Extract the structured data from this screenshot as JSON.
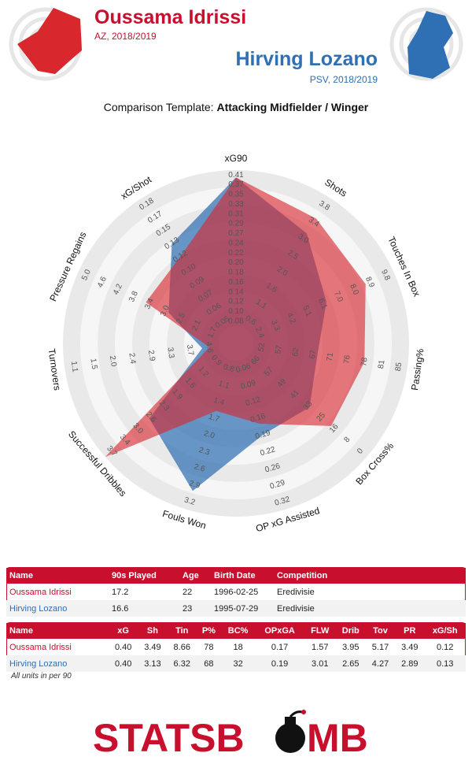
{
  "players": [
    {
      "name": "Oussama Idrissi",
      "sub": "AZ, 2018/2019",
      "color": "#d9272e"
    },
    {
      "name": "Hirving Lozano",
      "sub": "PSV, 2018/2019",
      "color": "#2f6fb3"
    }
  ],
  "template": {
    "label": "Comparison Template:",
    "value": "Attacking Midfielder / Winger"
  },
  "chart_data": {
    "type": "radar",
    "axes": [
      {
        "name": "xG90",
        "ticks": [
          "0.08",
          "0.10",
          "0.12",
          "0.14",
          "0.16",
          "0.18",
          "0.20",
          "0.22",
          "0.24",
          "0.27",
          "0.29",
          "0.31",
          "0.33",
          "0.35",
          "0.37",
          "0.41"
        ]
      },
      {
        "name": "Shots",
        "ticks": [
          "0.6",
          "1.1",
          "1.6",
          "2.0",
          "2.5",
          "3.0",
          "3.4",
          "3.8"
        ]
      },
      {
        "name": "Touches In Box",
        "ticks": [
          "2.4",
          "3.3",
          "4.2",
          "5.1",
          "6.1",
          "7.0",
          "8.0",
          "8.9",
          "9.8"
        ]
      },
      {
        "name": "Passing%",
        "ticks": [
          "52",
          "57",
          "62",
          "67",
          "71",
          "76",
          "78",
          "81",
          "85"
        ]
      },
      {
        "name": "Box Cross%",
        "ticks": [
          "66",
          "57",
          "49",
          "41",
          "33",
          "25",
          "16",
          "8",
          "0"
        ]
      },
      {
        "name": "OP xG Assisted",
        "ticks": [
          "0.06",
          "0.09",
          "0.12",
          "0.16",
          "0.19",
          "0.22",
          "0.26",
          "0.29",
          "0.32"
        ]
      },
      {
        "name": "Fouls Won",
        "ticks": [
          "0.8",
          "1.1",
          "1.4",
          "1.7",
          "2.0",
          "2.3",
          "2.6",
          "2.9",
          "3.2"
        ]
      },
      {
        "name": "Successful Dribbles",
        "ticks": [
          "0.9",
          "1.2",
          "1.6",
          "1.9",
          "2.3",
          "2.6",
          "3.0",
          "3.4",
          "3.7"
        ]
      },
      {
        "name": "Turnovers",
        "ticks": [
          "4.6",
          "3.7",
          "3.3",
          "2.9",
          "2.4",
          "2.0",
          "1.5",
          "1.1"
        ]
      },
      {
        "name": "Pressure Regains",
        "ticks": [
          "1.7",
          "2.1",
          "2.5",
          "3.0",
          "3.4",
          "3.8",
          "4.2",
          "4.6",
          "5.0"
        ]
      },
      {
        "name": "xG/Shot",
        "ticks": [
          "0.05",
          "0.06",
          "0.07",
          "0.09",
          "0.10",
          "0.12",
          "0.13",
          "0.15",
          "0.17",
          "0.18"
        ]
      }
    ],
    "series": [
      {
        "name": "Oussama Idrissi",
        "values": [
          0.4,
          3.49,
          8.66,
          78,
          18,
          0.17,
          1.57,
          3.95,
          5.17,
          3.49,
          0.12
        ]
      },
      {
        "name": "Hirving Lozano",
        "values": [
          0.4,
          3.13,
          6.32,
          68,
          32,
          0.19,
          3.01,
          2.65,
          4.27,
          2.89,
          0.13
        ]
      }
    ]
  },
  "table1": {
    "headers": [
      "Name",
      "90s Played",
      "Age",
      "Birth Date",
      "Competition"
    ],
    "rows": [
      [
        "Oussama Idrissi",
        "17.2",
        "22",
        "1996-02-25",
        "Eredivisie"
      ],
      [
        "Hirving Lozano",
        "16.6",
        "23",
        "1995-07-29",
        "Eredivisie"
      ]
    ]
  },
  "table2": {
    "headers": [
      "Name",
      "xG",
      "Sh",
      "Tin",
      "P%",
      "BC%",
      "OPxGA",
      "FLW",
      "Drib",
      "Tov",
      "PR",
      "xG/Sh"
    ],
    "rows": [
      [
        "Oussama Idrissi",
        "0.40",
        "3.49",
        "8.66",
        "78",
        "18",
        "0.17",
        "1.57",
        "3.95",
        "5.17",
        "3.49",
        "0.12"
      ],
      [
        "Hirving Lozano",
        "0.40",
        "3.13",
        "6.32",
        "68",
        "32",
        "0.19",
        "3.01",
        "2.65",
        "4.27",
        "2.89",
        "0.13"
      ]
    ]
  },
  "note": "All units in per 90",
  "logo": {
    "left": "STATSB",
    "right": "MB"
  }
}
